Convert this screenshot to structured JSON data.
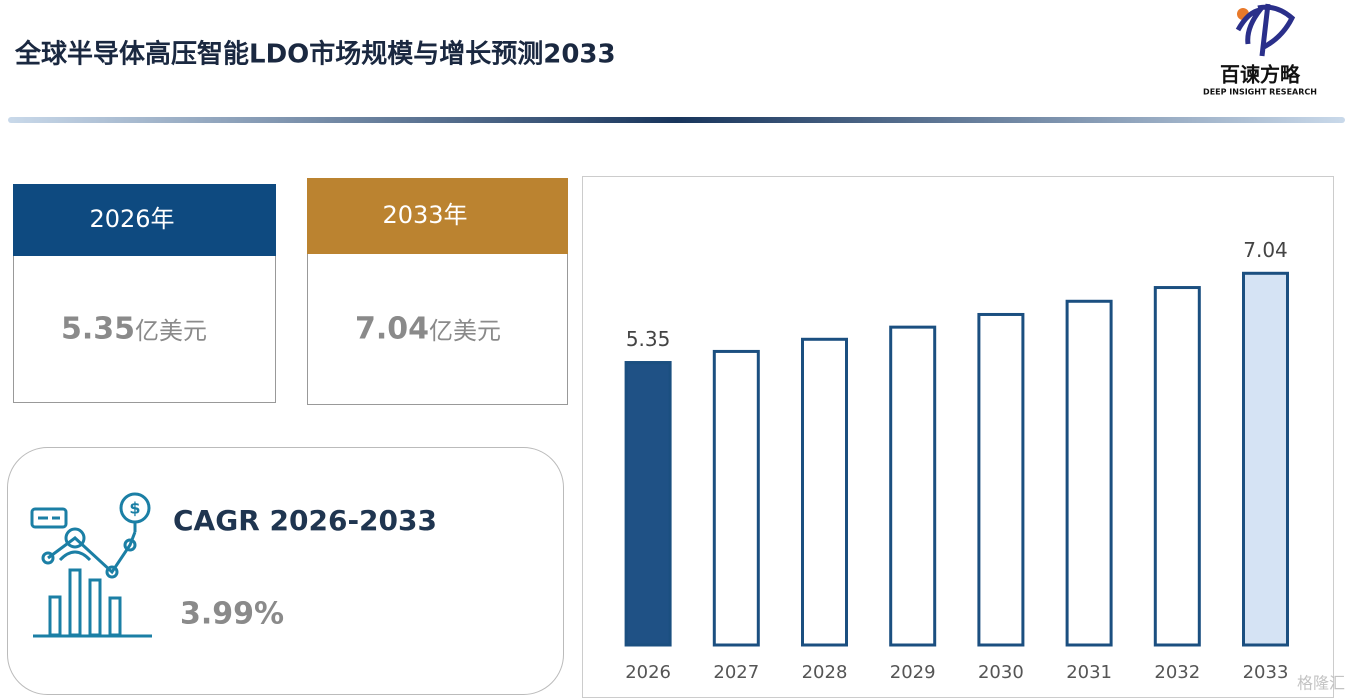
{
  "header": {
    "title": "全球半导体高压智能LDO市场规模与增长预测2033",
    "logo_name": "百谏方略",
    "logo_tagline": "DEEP INSIGHT RESEARCH"
  },
  "cards": [
    {
      "year": "2026年",
      "value": "5.35",
      "unit": "亿美元"
    },
    {
      "year": "2033年",
      "value": "7.04",
      "unit": "亿美元"
    }
  ],
  "cagr": {
    "label": "CAGR 2026-2033",
    "value": "3.99%"
  },
  "watermark": "格隆汇",
  "chart_data": {
    "type": "bar",
    "categories": [
      "2026",
      "2027",
      "2028",
      "2029",
      "2030",
      "2031",
      "2032",
      "2033"
    ],
    "values": [
      5.35,
      5.56,
      5.79,
      6.02,
      6.26,
      6.51,
      6.77,
      7.04
    ],
    "value_labels": [
      "5.35",
      null,
      null,
      null,
      null,
      null,
      null,
      "7.04"
    ],
    "fills": [
      "#1f5185",
      "#ffffff",
      "#ffffff",
      "#ffffff",
      "#ffffff",
      "#ffffff",
      "#ffffff",
      "#d5e3f4"
    ],
    "stroke": "#1b4f80",
    "ylim": [
      0,
      7.5
    ]
  }
}
